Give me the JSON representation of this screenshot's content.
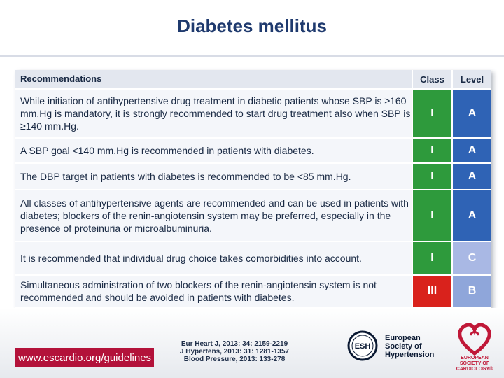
{
  "page": {
    "title": "Diabetes mellitus"
  },
  "table": {
    "headers": {
      "recommendations": "Recommendations",
      "class": "Class",
      "level": "Level"
    },
    "rows": [
      {
        "text": "While initiation of antihypertensive drug treatment in diabetic patients whose SBP is ≥160 mm.Hg is mandatory, it is strongly recommended to start drug treatment also when SBP is ≥140 mm.Hg.",
        "class": "I",
        "level": "A"
      },
      {
        "text": "A SBP goal <140 mm.Hg is recommended in patients with diabetes.",
        "class": "I",
        "level": "A"
      },
      {
        "text": "The DBP target in patients with diabetes is recommended to be <85 mm.Hg.",
        "class": "I",
        "level": "A"
      },
      {
        "text": "All classes of antihypertensive agents are recommended and can be used in patients with diabetes; blockers of the renin-angiotensin system may be preferred, especially in the presence of proteinuria or microalbuminuria.",
        "class": "I",
        "level": "A"
      },
      {
        "text": "It is recommended that individual drug choice takes comorbidities into account.",
        "class": "I",
        "level": "C"
      },
      {
        "text": "Simultaneous administration of two blockers of the renin-angiotensin system is not recommended and should be avoided in patients with diabetes.",
        "class": "III",
        "level": "B"
      }
    ]
  },
  "colors": {
    "class_I": "#2e9a3c",
    "class_III": "#d9221c",
    "level_A": "#2f63b5",
    "level_B": "#8fa6da",
    "level_C": "#a9b8e4",
    "url_box": "#b3123a"
  },
  "footer": {
    "url": "www.escardio.org/guidelines",
    "references": [
      "Eur Heart J, 2013; 34: 2159-2219",
      "J Hypertens, 2013: 31: 1281-1357",
      "Blood Pressure, 2013: 133-278"
    ],
    "esh_logo_text": "ESH",
    "esh_name": [
      "European",
      "Society of",
      "Hypertension"
    ],
    "esc_name": [
      "EUROPEAN",
      "SOCIETY OF",
      "CARDIOLOGY®"
    ]
  }
}
